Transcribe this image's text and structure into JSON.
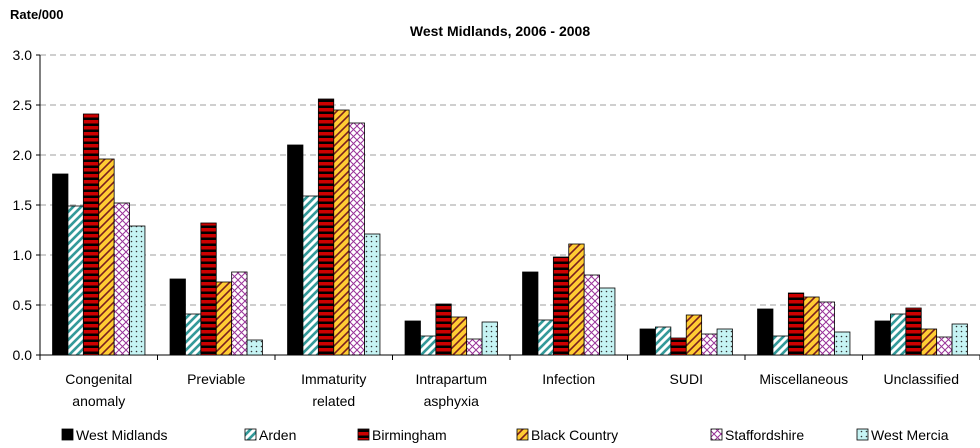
{
  "chart_data": {
    "type": "bar",
    "title": "West Midlands, 2006 - 2008",
    "ylabel": "Rate/000",
    "xlabel": "",
    "ylim": [
      0,
      3.0
    ],
    "yticks": [
      "0.0",
      "0.5",
      "1.0",
      "1.5",
      "2.0",
      "2.5",
      "3.0"
    ],
    "grid": true,
    "legend_position": "bottom",
    "categories": [
      [
        "Congenital",
        "anomaly"
      ],
      [
        "Previable"
      ],
      [
        "Immaturity",
        "related"
      ],
      [
        "Intrapartum",
        "asphyxia"
      ],
      [
        "Infection"
      ],
      [
        "SUDI"
      ],
      [
        "Miscellaneous"
      ],
      [
        "Unclassified"
      ]
    ],
    "series": [
      {
        "name": "West Midlands",
        "color": "#000000",
        "pattern": "solid",
        "values": [
          1.81,
          0.76,
          2.1,
          0.34,
          0.83,
          0.26,
          0.46,
          0.34
        ]
      },
      {
        "name": "Arden",
        "color": "#339999",
        "pattern": "diagonal-teal",
        "values": [
          1.49,
          0.41,
          1.59,
          0.19,
          0.35,
          0.28,
          0.19,
          0.41
        ]
      },
      {
        "name": "Birmingham",
        "color": "#cc0000",
        "pattern": "horizontal-red",
        "values": [
          2.41,
          1.32,
          2.56,
          0.51,
          0.98,
          0.17,
          0.62,
          0.47
        ]
      },
      {
        "name": "Black Country",
        "color": "#ffcc33",
        "pattern": "diagonal-yellow",
        "values": [
          1.96,
          0.73,
          2.45,
          0.38,
          1.11,
          0.4,
          0.58,
          0.26
        ]
      },
      {
        "name": "Staffordshire",
        "color": "#993399",
        "pattern": "crosshatch-purple",
        "values": [
          1.52,
          0.83,
          2.32,
          0.16,
          0.8,
          0.21,
          0.53,
          0.18
        ]
      },
      {
        "name": "West Mercia",
        "color": "#bff0f0",
        "pattern": "dotted-cyan",
        "values": [
          1.29,
          0.15,
          1.21,
          0.33,
          0.67,
          0.26,
          0.23,
          0.31
        ]
      }
    ]
  }
}
